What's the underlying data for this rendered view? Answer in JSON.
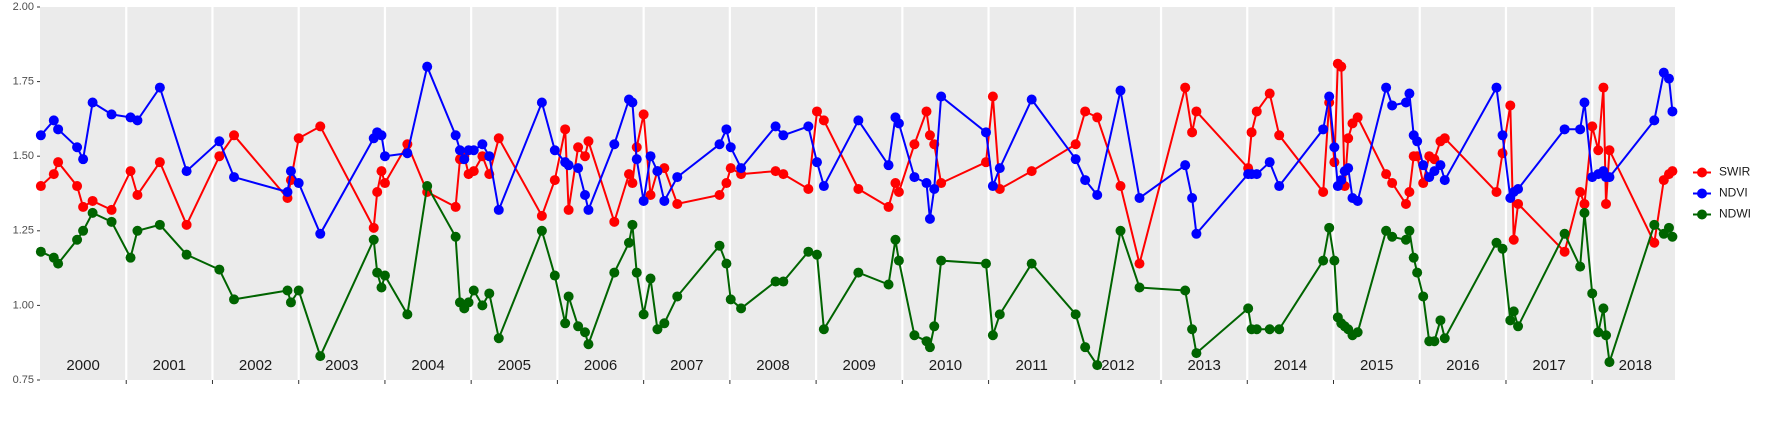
{
  "chart_data": {
    "type": "line",
    "x": [
      2000.01,
      2000.16,
      2000.21,
      2000.43,
      2000.5,
      2000.61,
      2000.83,
      2001.05,
      2001.13,
      2001.39,
      2001.7,
      2002.08,
      2002.25,
      2002.87,
      2002.91,
      2003.0,
      2003.25,
      2003.87,
      2003.91,
      2003.96,
      2004.0,
      2004.26,
      2004.49,
      2004.82,
      2004.87,
      2004.92,
      2004.97,
      2005.03,
      2005.13,
      2005.21,
      2005.32,
      2005.82,
      2005.97,
      2006.09,
      2006.13,
      2006.24,
      2006.32,
      2006.36,
      2006.66,
      2006.83,
      2006.87,
      2006.92,
      2007.0,
      2007.08,
      2007.16,
      2007.24,
      2007.39,
      2007.88,
      2007.96,
      2008.01,
      2008.13,
      2008.53,
      2008.62,
      2008.91,
      2009.01,
      2009.09,
      2009.49,
      2009.84,
      2009.92,
      2009.96,
      2010.14,
      2010.28,
      2010.32,
      2010.37,
      2010.45,
      2010.97,
      2011.05,
      2011.13,
      2011.5,
      2012.01,
      2012.12,
      2012.26,
      2012.53,
      2012.75,
      2013.28,
      2013.36,
      2013.41,
      2014.01,
      2014.05,
      2014.11,
      2014.26,
      2014.37,
      2014.88,
      2014.95,
      2015.01,
      2015.05,
      2015.09,
      2015.13,
      2015.17,
      2015.22,
      2015.28,
      2015.61,
      2015.68,
      2015.84,
      2015.88,
      2015.93,
      2015.97,
      2016.04,
      2016.11,
      2016.17,
      2016.24,
      2016.29,
      2016.89,
      2016.96,
      2017.05,
      2017.09,
      2017.14,
      2017.68,
      2017.86,
      2017.91,
      2018.0,
      2018.07,
      2018.13,
      2018.16,
      2018.2,
      2018.72,
      2018.83,
      2018.89,
      2018.93
    ],
    "series": [
      {
        "name": "SWIR",
        "color": "#ff0000",
        "values": [
          1.4,
          1.44,
          1.48,
          1.4,
          1.33,
          1.35,
          1.32,
          1.45,
          1.37,
          1.48,
          1.27,
          1.5,
          1.57,
          1.36,
          1.42,
          1.56,
          1.6,
          1.26,
          1.38,
          1.45,
          1.41,
          1.54,
          1.38,
          1.33,
          1.49,
          1.5,
          1.44,
          1.45,
          1.5,
          1.44,
          1.56,
          1.3,
          1.42,
          1.59,
          1.32,
          1.53,
          1.5,
          1.55,
          1.28,
          1.44,
          1.41,
          1.53,
          1.64,
          1.37,
          1.45,
          1.46,
          1.34,
          1.37,
          1.41,
          1.46,
          1.44,
          1.45,
          1.44,
          1.39,
          1.65,
          1.62,
          1.39,
          1.33,
          1.41,
          1.38,
          1.54,
          1.65,
          1.57,
          1.54,
          1.41,
          1.48,
          1.7,
          1.39,
          1.45,
          1.54,
          1.65,
          1.63,
          1.4,
          1.14,
          1.73,
          1.58,
          1.65,
          1.46,
          1.58,
          1.65,
          1.71,
          1.57,
          1.38,
          1.68,
          1.48,
          1.81,
          1.8,
          1.4,
          1.56,
          1.61,
          1.63,
          1.44,
          1.41,
          1.34,
          1.38,
          1.5,
          1.5,
          1.41,
          1.5,
          1.49,
          1.55,
          1.56,
          1.38,
          1.51,
          1.67,
          1.22,
          1.34,
          1.18,
          1.38,
          1.34,
          1.6,
          1.52,
          1.73,
          1.34,
          1.52,
          1.21,
          1.42,
          1.44,
          1.45
        ]
      },
      {
        "name": "NDVI",
        "color": "#0000ff",
        "values": [
          1.57,
          1.62,
          1.59,
          1.53,
          1.49,
          1.68,
          1.64,
          1.63,
          1.62,
          1.73,
          1.45,
          1.55,
          1.43,
          1.38,
          1.45,
          1.41,
          1.24,
          1.56,
          1.58,
          1.57,
          1.5,
          1.51,
          1.8,
          1.57,
          1.52,
          1.49,
          1.52,
          1.52,
          1.54,
          1.5,
          1.32,
          1.68,
          1.52,
          1.48,
          1.47,
          1.46,
          1.37,
          1.32,
          1.54,
          1.69,
          1.68,
          1.49,
          1.35,
          1.5,
          1.45,
          1.35,
          1.43,
          1.54,
          1.59,
          1.53,
          1.46,
          1.6,
          1.57,
          1.6,
          1.48,
          1.4,
          1.62,
          1.47,
          1.63,
          1.61,
          1.43,
          1.41,
          1.29,
          1.39,
          1.7,
          1.58,
          1.4,
          1.46,
          1.69,
          1.49,
          1.42,
          1.37,
          1.72,
          1.36,
          1.47,
          1.36,
          1.24,
          1.44,
          1.44,
          1.44,
          1.48,
          1.4,
          1.59,
          1.7,
          1.53,
          1.4,
          1.42,
          1.45,
          1.46,
          1.36,
          1.35,
          1.73,
          1.67,
          1.68,
          1.71,
          1.57,
          1.55,
          1.47,
          1.43,
          1.45,
          1.47,
          1.42,
          1.73,
          1.57,
          1.36,
          1.38,
          1.39,
          1.59,
          1.59,
          1.68,
          1.43,
          1.44,
          1.45,
          1.43,
          1.43,
          1.62,
          1.78,
          1.76,
          1.65
        ]
      },
      {
        "name": "NDWI",
        "color": "#006400",
        "values": [
          1.18,
          1.16,
          1.14,
          1.22,
          1.25,
          1.31,
          1.28,
          1.16,
          1.25,
          1.27,
          1.17,
          1.12,
          1.02,
          1.05,
          1.01,
          1.05,
          0.83,
          1.22,
          1.11,
          1.06,
          1.1,
          0.97,
          1.4,
          1.23,
          1.01,
          0.99,
          1.01,
          1.05,
          1.0,
          1.04,
          0.89,
          1.25,
          1.1,
          0.94,
          1.03,
          0.93,
          0.91,
          0.87,
          1.11,
          1.21,
          1.27,
          1.11,
          0.97,
          1.09,
          0.92,
          0.94,
          1.03,
          1.2,
          1.14,
          1.02,
          0.99,
          1.08,
          1.08,
          1.18,
          1.17,
          0.92,
          1.11,
          1.07,
          1.22,
          1.15,
          0.9,
          0.88,
          0.86,
          0.93,
          1.15,
          1.14,
          0.9,
          0.97,
          1.14,
          0.97,
          0.86,
          0.8,
          1.25,
          1.06,
          1.05,
          0.92,
          0.84,
          0.99,
          0.92,
          0.92,
          0.92,
          0.92,
          1.15,
          1.26,
          1.15,
          0.96,
          0.94,
          0.93,
          0.92,
          0.9,
          0.91,
          1.25,
          1.23,
          1.22,
          1.25,
          1.16,
          1.11,
          1.03,
          0.88,
          0.88,
          0.95,
          0.89,
          1.21,
          1.19,
          0.95,
          0.98,
          0.93,
          1.24,
          1.13,
          1.31,
          1.04,
          0.91,
          0.99,
          0.9,
          0.81,
          1.27,
          1.24,
          1.26,
          1.23
        ]
      }
    ],
    "xlim": [
      2000,
      2018.96
    ],
    "xticks": [
      2001,
      2002,
      2003,
      2004,
      2005,
      2006,
      2007,
      2008,
      2009,
      2010,
      2011,
      2012,
      2013,
      2014,
      2015,
      2016,
      2017,
      2018
    ],
    "year_labels": [
      "2000",
      "2001",
      "2002",
      "2003",
      "2004",
      "2005",
      "2006",
      "2007",
      "2008",
      "2009",
      "2010",
      "2011",
      "2012",
      "2013",
      "2014",
      "2015",
      "2016",
      "2017",
      "2018"
    ],
    "ylim": [
      0.75,
      2.0
    ],
    "yticks": [
      0.75,
      {
        "value": 1,
        "label": "1.00"
      },
      1.25,
      {
        "value": 1.5,
        "label": "1.50"
      },
      1.75,
      {
        "value": 2,
        "label": "2.00"
      }
    ],
    "grid": "x",
    "legend": "right"
  }
}
